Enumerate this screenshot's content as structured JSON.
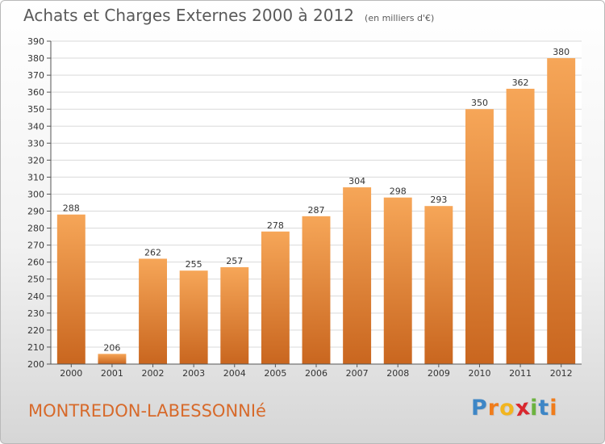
{
  "header": {
    "title": "Achats et Charges Externes 2000 à 2012",
    "unit_note": "(en milliers d'€)"
  },
  "footer": {
    "location": "MONTREDON-LABESSONNIé",
    "brand": "Proxiti",
    "brand_letters": [
      {
        "char": "P",
        "color": "#3d86c6"
      },
      {
        "char": "r",
        "color": "#f07c1b"
      },
      {
        "char": "o",
        "color": "#f2b51f"
      },
      {
        "char": "x",
        "color": "#d9272e"
      },
      {
        "char": "i",
        "color": "#6cb33f"
      },
      {
        "char": "t",
        "color": "#3d86c6"
      },
      {
        "char": "i",
        "color": "#f07c1b"
      }
    ]
  },
  "colors": {
    "bar_light": "#f6a658",
    "bar_dark": "#c9661f",
    "grid": "#d9d9d9",
    "axis": "#555555",
    "text": "#333333"
  },
  "chart_data": {
    "type": "bar",
    "title": "Achats et Charges Externes 2000 à 2012",
    "subtitle": "(en milliers d'€)",
    "categories": [
      "2000",
      "2001",
      "2002",
      "2003",
      "2004",
      "2005",
      "2006",
      "2007",
      "2008",
      "2009",
      "2010",
      "2011",
      "2012"
    ],
    "values": [
      288,
      206,
      262,
      255,
      257,
      278,
      287,
      304,
      298,
      293,
      350,
      362,
      380
    ],
    "data_labels": [
      "288",
      "206",
      "262",
      "255",
      "257",
      "278",
      "287",
      "304",
      "298",
      "293",
      "350",
      "362",
      "380"
    ],
    "ylim": [
      200,
      390
    ],
    "y_ticks": [
      200,
      210,
      220,
      230,
      240,
      250,
      260,
      270,
      280,
      290,
      300,
      310,
      320,
      330,
      340,
      350,
      360,
      370,
      380,
      390
    ],
    "grid": true,
    "legend": "none"
  }
}
